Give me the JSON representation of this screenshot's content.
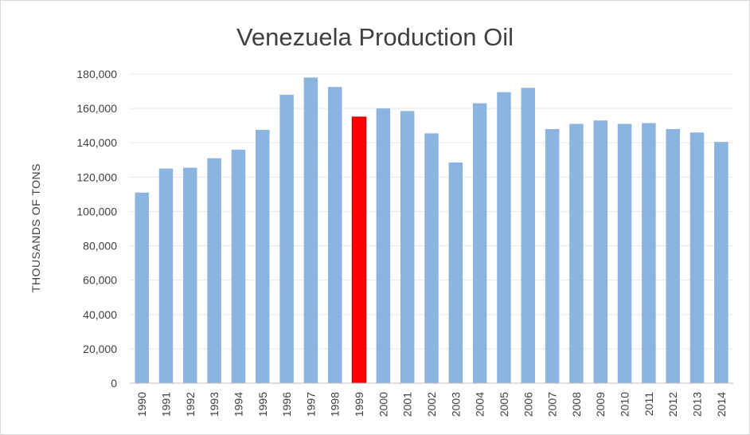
{
  "chart_data": {
    "type": "bar",
    "title": "Venezuela Production Oil",
    "xlabel": "",
    "ylabel": "THOUSANDS OF TONS",
    "categories": [
      "1990",
      "1991",
      "1992",
      "1993",
      "1994",
      "1995",
      "1996",
      "1997",
      "1998",
      "1999",
      "2000",
      "2001",
      "2002",
      "2003",
      "2004",
      "2005",
      "2006",
      "2007",
      "2008",
      "2009",
      "2010",
      "2011",
      "2012",
      "2013",
      "2014"
    ],
    "values": [
      111000,
      125000,
      125500,
      131000,
      136000,
      147500,
      168000,
      178000,
      172500,
      155000,
      160000,
      158500,
      145500,
      128500,
      163000,
      169500,
      172000,
      148000,
      151000,
      153000,
      151000,
      151500,
      148000,
      146000,
      140500
    ],
    "yticks": [
      "0",
      "20,000",
      "40,000",
      "60,000",
      "80,000",
      "100,000",
      "120,000",
      "140,000",
      "160,000",
      "180,000"
    ],
    "ylim": [
      0,
      180000
    ],
    "grid": true,
    "legend": "none",
    "highlight_category": "1999",
    "colors": {
      "bar": "#8cb4e0",
      "highlight": "#ff0000",
      "highlight_border": "#c00000"
    }
  }
}
